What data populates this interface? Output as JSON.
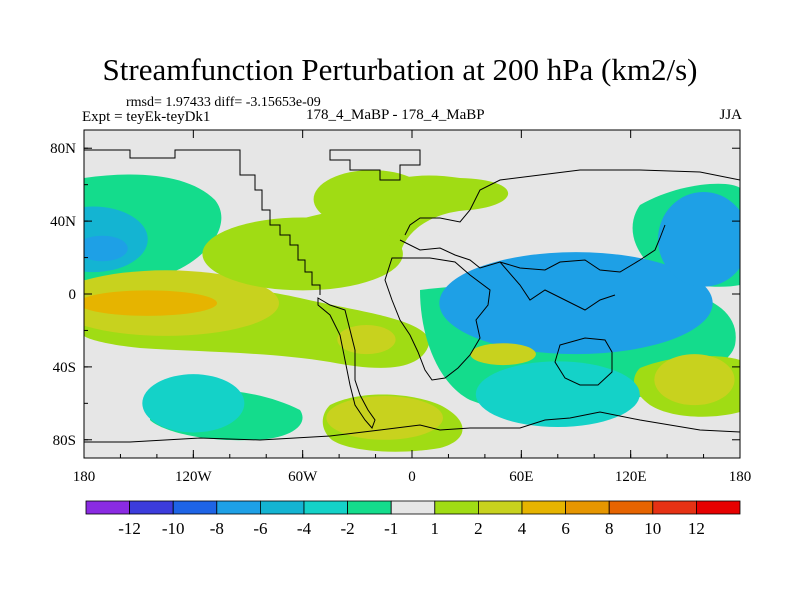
{
  "chart_data": {
    "type": "contour-map",
    "title": "Streamfunction Perturbation at 200 hPa (km2/s)",
    "stats_line": "rmsd= 1.97433 diff= -3.15653e-09",
    "experiment_label": "Expt = teyEk-teyDk1",
    "cases_label": "178_4_MaBP - 178_4_MaBP",
    "season_label": "JJA",
    "x_range": [
      -180,
      180
    ],
    "y_range": [
      -90,
      90
    ],
    "x_ticks": [
      {
        "value": -180,
        "label": "180"
      },
      {
        "value": -120,
        "label": "120W"
      },
      {
        "value": -60,
        "label": "60W"
      },
      {
        "value": 0,
        "label": "0"
      },
      {
        "value": 60,
        "label": "60E"
      },
      {
        "value": 120,
        "label": "120E"
      },
      {
        "value": 180,
        "label": "180"
      }
    ],
    "y_ticks": [
      {
        "value": 80,
        "label": "80N"
      },
      {
        "value": 40,
        "label": "40N"
      },
      {
        "value": 0,
        "label": "0"
      },
      {
        "value": -40,
        "label": "40S"
      },
      {
        "value": -80,
        "label": "80S"
      }
    ],
    "colorbar": {
      "levels": [
        "-12",
        "-10",
        "-8",
        "-6",
        "-4",
        "-2",
        "-1",
        "1",
        "2",
        "4",
        "6",
        "8",
        "10",
        "12"
      ],
      "colors": [
        "#8a2be2",
        "#3c3cdc",
        "#1e64e6",
        "#1ea0e6",
        "#14b4d2",
        "#14d2c8",
        "#14dc8c",
        "#e6e6e6",
        "#a0dc14",
        "#c8d21e",
        "#e6b400",
        "#e69600",
        "#e66400",
        "#e63214",
        "#e60000"
      ]
    },
    "anomalies": [
      {
        "lon": -175,
        "lat": 30,
        "level": -4,
        "rx": 30,
        "ry": 18,
        "fill": "#14b4d2"
      },
      {
        "lon": -170,
        "lat": 25,
        "level": -6,
        "rx": 14,
        "ry": 7,
        "fill": "#1ea0e6"
      },
      {
        "lon": -135,
        "lat": -5,
        "level": 4,
        "rx": 62,
        "ry": 18,
        "fill": "#c8d21e"
      },
      {
        "lon": -145,
        "lat": -5,
        "level": 6,
        "rx": 38,
        "ry": 7,
        "fill": "#e6b400"
      },
      {
        "lon": -60,
        "lat": 22,
        "level": 2,
        "rx": 55,
        "ry": 20,
        "fill": "#a0dc14"
      },
      {
        "lon": -22,
        "lat": 52,
        "level": 2,
        "rx": 32,
        "ry": 16,
        "fill": "#a0dc14"
      },
      {
        "lon": -25,
        "lat": -25,
        "level": 4,
        "rx": 16,
        "ry": 8,
        "fill": "#c8d21e"
      },
      {
        "lon": -120,
        "lat": -60,
        "level": -2,
        "rx": 28,
        "ry": 16,
        "fill": "#14d2c8"
      },
      {
        "lon": -15,
        "lat": -68,
        "level": 4,
        "rx": 32,
        "ry": 12,
        "fill": "#c8d21e"
      },
      {
        "lon": 90,
        "lat": -5,
        "level": -6,
        "rx": 75,
        "ry": 28,
        "fill": "#1ea0e6"
      },
      {
        "lon": 50,
        "lat": -33,
        "level": 4,
        "rx": 18,
        "ry": 6,
        "fill": "#c8d21e"
      },
      {
        "lon": 80,
        "lat": -55,
        "level": -2,
        "rx": 45,
        "ry": 18,
        "fill": "#14d2c8"
      },
      {
        "lon": 155,
        "lat": -47,
        "level": 4,
        "rx": 22,
        "ry": 14,
        "fill": "#c8d21e"
      },
      {
        "lon": 160,
        "lat": 30,
        "level": -6,
        "rx": 25,
        "ry": 26,
        "fill": "#1ea0e6"
      }
    ]
  }
}
